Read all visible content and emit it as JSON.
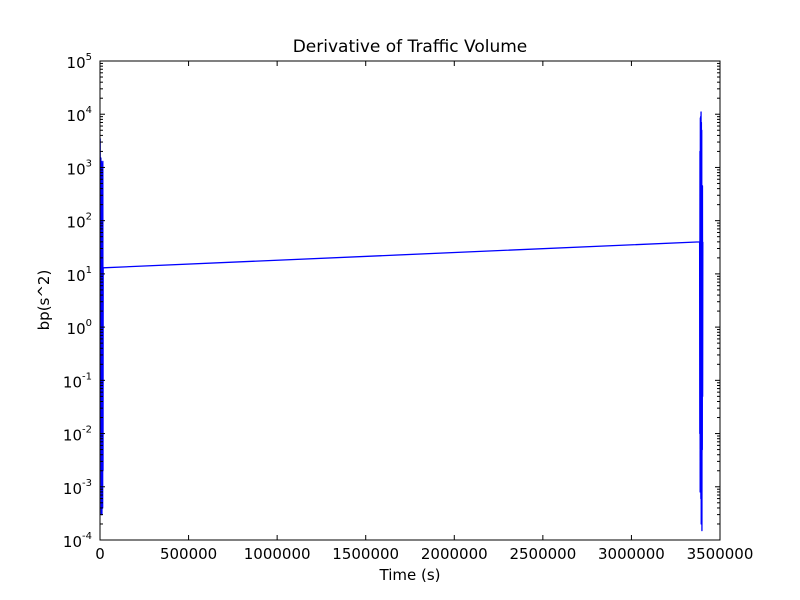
{
  "chart_data": {
    "type": "line",
    "title": "Derivative of Traffic Volume",
    "xlabel": "Time (s)",
    "ylabel": "bp(s^2)",
    "xlim": [
      0,
      3500000
    ],
    "ylim": [
      0.0001,
      100000
    ],
    "yscale": "log",
    "grid": false,
    "xticks": [
      {
        "value": 0,
        "label": "0"
      },
      {
        "value": 500000,
        "label": "500000"
      },
      {
        "value": 1000000,
        "label": "1000000"
      },
      {
        "value": 1500000,
        "label": "1500000"
      },
      {
        "value": 2000000,
        "label": "2000000"
      },
      {
        "value": 2500000,
        "label": "2500000"
      },
      {
        "value": 3000000,
        "label": "3000000"
      },
      {
        "value": 3500000,
        "label": "3500000"
      }
    ],
    "yticks": [
      {
        "value": 0.0001,
        "base": "10",
        "exp": "-4"
      },
      {
        "value": 0.001,
        "base": "10",
        "exp": "-3"
      },
      {
        "value": 0.01,
        "base": "10",
        "exp": "-2"
      },
      {
        "value": 0.1,
        "base": "10",
        "exp": "-1"
      },
      {
        "value": 1,
        "base": "10",
        "exp": "0"
      },
      {
        "value": 10,
        "base": "10",
        "exp": "1"
      },
      {
        "value": 100,
        "base": "10",
        "exp": "2"
      },
      {
        "value": 1000,
        "base": "10",
        "exp": "3"
      },
      {
        "value": 10000,
        "base": "10",
        "exp": "4"
      },
      {
        "value": 100000,
        "base": "10",
        "exp": "5"
      }
    ],
    "series": [
      {
        "color": "#0000ff",
        "x": [
          1000,
          3000,
          5000,
          7000,
          8000,
          9000,
          10000,
          11000,
          12000,
          13000,
          14000,
          15000,
          16000,
          17000,
          18000,
          3385000,
          3386000,
          3387000,
          3388000,
          3389000,
          3390000,
          3391000,
          3392000,
          3393000,
          3394000,
          3395000,
          3396000,
          3397000,
          3398000,
          3399000,
          3400000,
          3401000,
          3402000,
          3403000
        ],
        "y": [
          3500,
          0.05,
          1500,
          0.0003,
          1300,
          0.0005,
          800,
          0.0003,
          1200,
          0.001,
          600,
          0.0004,
          1300,
          0.002,
          13,
          40,
          0.01,
          2000,
          0.0008,
          8500,
          0.002,
          9000,
          0.0006,
          11000,
          0.0002,
          7000,
          0.003,
          5000,
          0.00015,
          300,
          0.005,
          450,
          0.05,
          40
        ]
      }
    ]
  }
}
